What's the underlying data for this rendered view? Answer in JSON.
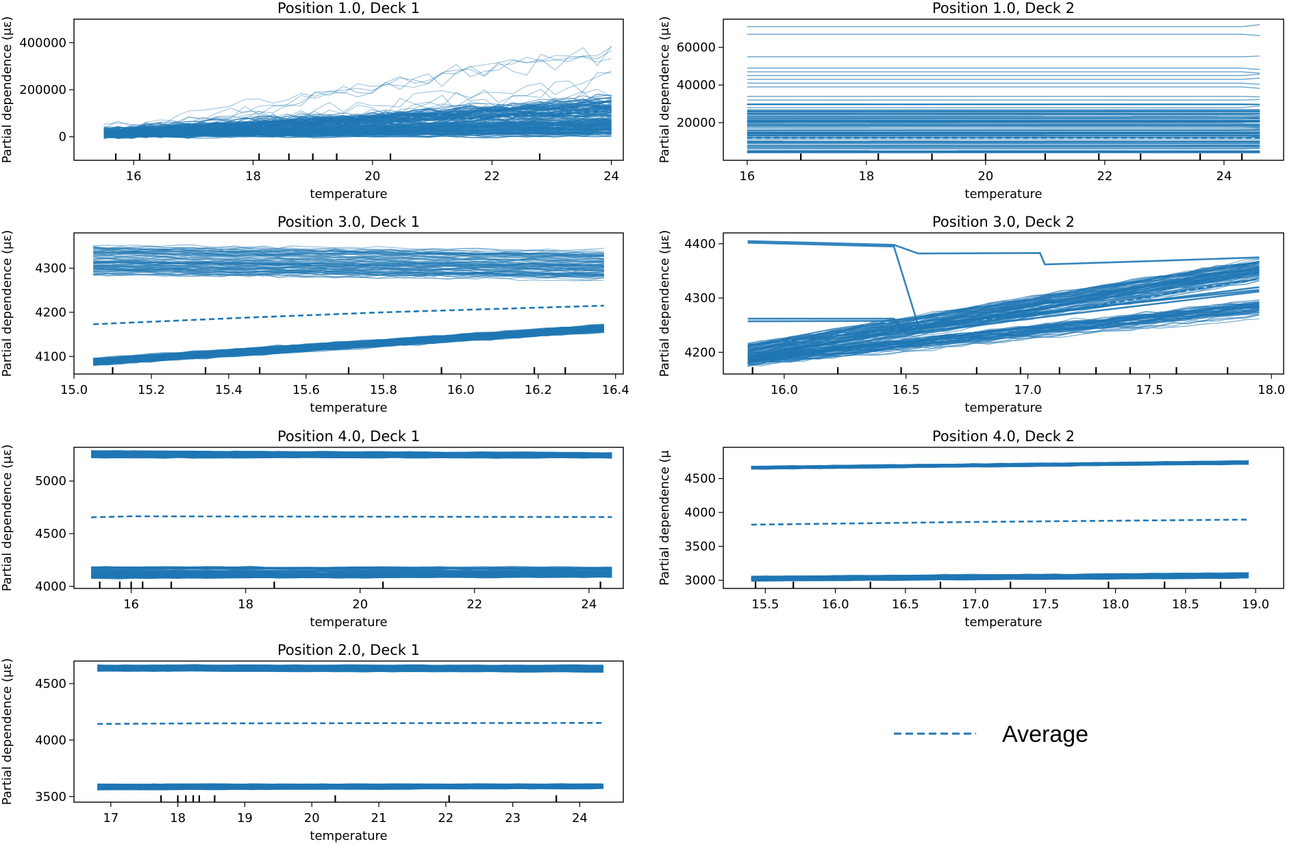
{
  "colors": {
    "line": "#1f77b4",
    "axis": "#000000",
    "background": "#ffffff"
  },
  "legend": {
    "label": "Average",
    "style": "dashed",
    "placement": "lower-right empty cell"
  },
  "chart_data": [
    {
      "type": "line",
      "kind": "ice",
      "title": "Position 1.0, Deck 1",
      "xlabel": "temperature",
      "ylabel": "Partial dependence (με)",
      "xlim": [
        15,
        24.2
      ],
      "ylim": [
        -100000,
        500000
      ],
      "xticks": [
        16,
        18,
        20,
        22,
        24
      ],
      "xtick_labels": [
        "16",
        "18",
        "20",
        "22",
        "24"
      ],
      "yticks": [
        0,
        200000,
        400000
      ],
      "ytick_labels": [
        "0",
        "200000",
        "400000"
      ],
      "rug": [
        15.7,
        16.1,
        16.6,
        18.1,
        18.6,
        19.0,
        19.4,
        20.3,
        22.8
      ],
      "x_range": [
        15.5,
        24
      ],
      "bands": [
        {
          "start": [
            0,
            30000
          ],
          "end": [
            50000,
            180000
          ],
          "lines": 80,
          "noise": 25000,
          "opacity": 0.6
        },
        {
          "start": [
            0,
            20000
          ],
          "end": [
            0,
            80000
          ],
          "lines": 70,
          "noise": 8000,
          "opacity": 0.7
        }
      ],
      "outliers": [
        {
          "start": 40000,
          "end": 420000,
          "lines": 12,
          "noise": 90000
        }
      ],
      "average": [
        [
          15.5,
          20000
        ],
        [
          20,
          60000
        ],
        [
          24,
          110000
        ]
      ]
    },
    {
      "type": "line",
      "kind": "ice",
      "title": "Position 1.0, Deck 2",
      "xlabel": "temperature",
      "ylabel": "Partial dependence (με)",
      "xlim": [
        15.6,
        25
      ],
      "ylim": [
        0,
        75000
      ],
      "xticks": [
        16,
        18,
        20,
        22,
        24
      ],
      "xtick_labels": [
        "16",
        "18",
        "20",
        "22",
        "24"
      ],
      "yticks": [
        20000,
        40000,
        60000
      ],
      "ytick_labels": [
        "20000",
        "40000",
        "60000"
      ],
      "rug": [
        16.9,
        18.2,
        19.1,
        20.0,
        21.0,
        21.9,
        22.6,
        23.6,
        24.3
      ],
      "x_range": [
        16,
        24.6
      ],
      "flat_levels": [
        71000,
        67000,
        55000,
        49000,
        47000,
        45000,
        43000,
        41000,
        39000,
        34000,
        32000,
        30000,
        28000,
        26000,
        24000,
        22000,
        20000,
        18000,
        16000,
        14000,
        12000,
        10000,
        8000,
        6000
      ],
      "dense_band": [
        4000,
        30000
      ],
      "average": [
        [
          16,
          12000
        ],
        [
          24.6,
          12000
        ]
      ]
    },
    {
      "type": "line",
      "kind": "ice",
      "title": "Position 3.0, Deck 1",
      "xlabel": "temperature",
      "ylabel": "Partial dependence (με)",
      "xlim": [
        15.0,
        16.42
      ],
      "ylim": [
        4060,
        4380
      ],
      "xticks": [
        15.0,
        15.2,
        15.4,
        15.6,
        15.8,
        16.0,
        16.2,
        16.4
      ],
      "xtick_labels": [
        "15.0",
        "15.2",
        "15.4",
        "15.6",
        "15.8",
        "16.0",
        "16.2",
        "16.4"
      ],
      "yticks": [
        4100,
        4200,
        4300
      ],
      "ytick_labels": [
        "4100",
        "4200",
        "4300"
      ],
      "rug": [
        15.1,
        15.34,
        15.48,
        15.71,
        15.95,
        16.19,
        16.27
      ],
      "x_range": [
        15.05,
        16.37
      ],
      "bands": [
        {
          "start": [
            4285,
            4350
          ],
          "end": [
            4270,
            4345
          ],
          "lines": 90,
          "noise": 6,
          "opacity": 0.5
        },
        {
          "start": [
            4080,
            4095
          ],
          "end": [
            4155,
            4172
          ],
          "lines": 90,
          "noise": 4,
          "opacity": 0.7
        }
      ],
      "average": [
        [
          15.05,
          4173
        ],
        [
          15.45,
          4188
        ],
        [
          15.8,
          4200
        ],
        [
          16.37,
          4215
        ]
      ]
    },
    {
      "type": "line",
      "kind": "ice",
      "title": "Position 3.0, Deck 2",
      "xlabel": "temperature",
      "ylabel": "Partial dependence (με)",
      "xlim": [
        15.75,
        18.05
      ],
      "ylim": [
        4160,
        4420
      ],
      "xticks": [
        16.0,
        16.5,
        17.0,
        17.5,
        18.0
      ],
      "xtick_labels": [
        "16.0",
        "16.5",
        "17.0",
        "17.5",
        "18.0"
      ],
      "yticks": [
        4200,
        4300,
        4400
      ],
      "ytick_labels": [
        "4200",
        "4300",
        "4400"
      ],
      "rug": [
        15.87,
        16.22,
        16.48,
        16.79,
        16.97,
        17.13,
        17.28,
        17.42,
        17.61,
        17.82
      ],
      "x_range": [
        15.85,
        17.95
      ],
      "bands": [
        {
          "start": [
            4180,
            4215
          ],
          "end": [
            4330,
            4375
          ],
          "lines": 90,
          "noise": 5,
          "opacity": 0.6
        },
        {
          "start": [
            4175,
            4195
          ],
          "end": [
            4265,
            4300
          ],
          "lines": 60,
          "noise": 6,
          "opacity": 0.6
        }
      ],
      "special_lines": [
        [
          [
            15.85,
            4405
          ],
          [
            16.45,
            4398
          ],
          [
            16.55,
            4382
          ],
          [
            17.05,
            4383
          ],
          [
            17.07,
            4362
          ],
          [
            17.5,
            4368
          ],
          [
            17.95,
            4375
          ]
        ],
        [
          [
            15.85,
            4402
          ],
          [
            16.45,
            4395
          ],
          [
            16.55,
            4250
          ],
          [
            17.95,
            4315
          ]
        ],
        [
          [
            15.85,
            4262
          ],
          [
            16.45,
            4262
          ],
          [
            16.5,
            4240
          ],
          [
            17.95,
            4320
          ]
        ],
        [
          [
            15.85,
            4257
          ],
          [
            16.45,
            4258
          ],
          [
            16.5,
            4235
          ],
          [
            17.95,
            4312
          ]
        ]
      ],
      "average": [
        [
          15.85,
          4213
        ],
        [
          16.5,
          4245
        ],
        [
          17.2,
          4280
        ],
        [
          17.95,
          4336
        ]
      ]
    },
    {
      "type": "line",
      "kind": "ice",
      "title": "Position 4.0, Deck 1",
      "xlabel": "temperature",
      "ylabel": "Partial dependence (με)",
      "xlim": [
        15.0,
        24.6
      ],
      "ylim": [
        3980,
        5320
      ],
      "xticks": [
        16,
        18,
        20,
        22,
        24
      ],
      "xtick_labels": [
        "16",
        "18",
        "20",
        "22",
        "24"
      ],
      "yticks": [
        4000,
        4500,
        5000
      ],
      "ytick_labels": [
        "4000",
        "4500",
        "5000"
      ],
      "rug": [
        15.45,
        15.8,
        16.0,
        16.2,
        16.7,
        18.5,
        20.4,
        24.2
      ],
      "x_range": [
        15.3,
        24.4
      ],
      "bands": [
        {
          "start": [
            5220,
            5285
          ],
          "end": [
            5215,
            5270
          ],
          "lines": 80,
          "noise": 8,
          "opacity": 0.8
        },
        {
          "start": [
            4075,
            4185
          ],
          "end": [
            4080,
            4185
          ],
          "lines": 80,
          "noise": 8,
          "opacity": 0.8
        }
      ],
      "average": [
        [
          15.3,
          4655
        ],
        [
          16,
          4665
        ],
        [
          24.4,
          4658
        ]
      ]
    },
    {
      "type": "line",
      "kind": "ice",
      "title": "Position 4.0, Deck 2",
      "xlabel": "temperature",
      "ylabel": "Partial dependence (μ",
      "xlim": [
        15.2,
        19.2
      ],
      "ylim": [
        2880,
        4960
      ],
      "xticks": [
        15.5,
        16.0,
        16.5,
        17.0,
        17.5,
        18.0,
        18.5,
        19.0
      ],
      "xtick_labels": [
        "15.5",
        "16.0",
        "16.5",
        "17.0",
        "17.5",
        "18.0",
        "18.5",
        "19.0"
      ],
      "yticks": [
        3000,
        3500,
        4000,
        4500
      ],
      "ytick_labels": [
        "3000",
        "3500",
        "4000",
        "4500"
      ],
      "rug": [
        15.43,
        15.7,
        16.25,
        16.75,
        17.25,
        17.95,
        18.35,
        18.75
      ],
      "x_range": [
        15.4,
        18.95
      ],
      "bands": [
        {
          "start": [
            4640,
            4680
          ],
          "end": [
            4710,
            4760
          ],
          "lines": 70,
          "noise": 10,
          "opacity": 0.8
        },
        {
          "start": [
            2990,
            3060
          ],
          "end": [
            3030,
            3110
          ],
          "lines": 70,
          "noise": 10,
          "opacity": 0.8
        }
      ],
      "average": [
        [
          15.4,
          3820
        ],
        [
          17.0,
          3860
        ],
        [
          18.95,
          3895
        ]
      ]
    },
    {
      "type": "line",
      "kind": "ice",
      "title": "Position 2.0, Deck 1",
      "xlabel": "temperature",
      "ylabel": "Partial dependence (με)",
      "xlim": [
        16.45,
        24.65
      ],
      "ylim": [
        3450,
        4700
      ],
      "xticks": [
        17,
        18,
        19,
        20,
        21,
        22,
        23,
        24
      ],
      "xtick_labels": [
        "17",
        "18",
        "19",
        "20",
        "21",
        "22",
        "23",
        "24"
      ],
      "yticks": [
        3500,
        4000,
        4500
      ],
      "ytick_labels": [
        "3500",
        "4000",
        "4500"
      ],
      "rug": [
        17.75,
        18.0,
        18.12,
        18.23,
        18.32,
        18.55,
        20.35,
        22.05,
        23.65
      ],
      "x_range": [
        16.8,
        24.35
      ],
      "bands": [
        {
          "start": [
            4610,
            4665
          ],
          "end": [
            4600,
            4665
          ],
          "lines": 80,
          "noise": 6,
          "opacity": 0.8
        },
        {
          "start": [
            3560,
            3610
          ],
          "end": [
            3565,
            3615
          ],
          "lines": 80,
          "noise": 6,
          "opacity": 0.8
        }
      ],
      "average": [
        [
          16.8,
          4143
        ],
        [
          18.3,
          4148
        ],
        [
          24.35,
          4152
        ]
      ]
    }
  ]
}
